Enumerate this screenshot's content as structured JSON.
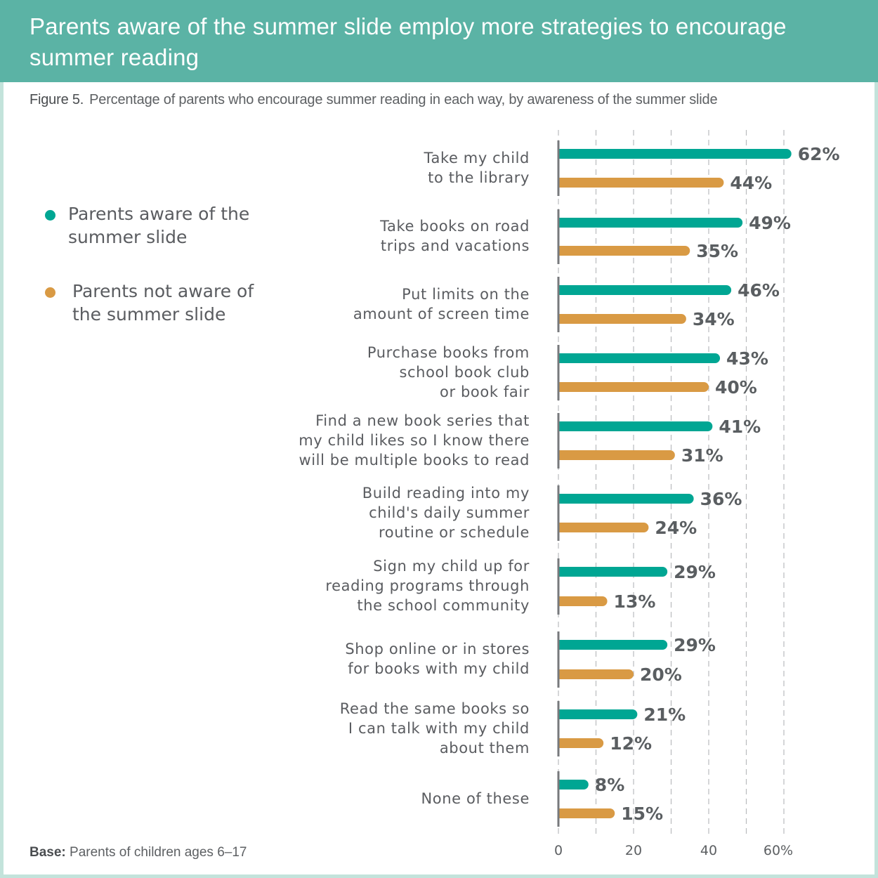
{
  "header": {
    "title": "Parents aware of the summer slide employ more strategies to encourage summer reading"
  },
  "figure": {
    "label": "Figure 5.",
    "caption": "Percentage of parents who encourage summer reading in each way, by awareness of the summer slide"
  },
  "footer": {
    "base_label": "Base:",
    "base_text": "Parents of children ages 6–17"
  },
  "colors": {
    "header_bg": "#5bb3a5",
    "aware": "#00a693",
    "not_aware": "#d99a44",
    "frame_border": "#c3e3db"
  },
  "chart_data": {
    "type": "bar",
    "orientation": "horizontal",
    "title": "Percentage of parents who encourage summer reading in each way, by awareness of the summer slide",
    "xlabel": "",
    "ylabel": "",
    "xlim": [
      0,
      62
    ],
    "grid": true,
    "legend_position": "left",
    "x_ticks": [
      0,
      20,
      40,
      60
    ],
    "x_tick_labels": [
      "0",
      "20",
      "40",
      "60%"
    ],
    "categories": [
      "Take my child\nto the library",
      "Take books on road\ntrips and vacations",
      "Put limits on the\namount of screen time",
      "Purchase books from\nschool book club\nor book fair",
      "Find a new book series that\nmy child likes so I know there\nwill be multiple books to read",
      "Build reading into my\nchild's daily summer\nroutine or schedule",
      "Sign my child up for\nreading programs through\nthe school community",
      "Shop online or in stores\nfor books with my child",
      "Read the same books so\nI can talk with my child\nabout them",
      "None of these"
    ],
    "series": [
      {
        "name": "Parents aware of the summer slide",
        "color": "#00a693",
        "values": [
          62,
          49,
          46,
          43,
          41,
          36,
          29,
          29,
          21,
          8
        ],
        "labels": [
          "62%",
          "49%",
          "46%",
          "43%",
          "41%",
          "36%",
          "29%",
          "29%",
          "21%",
          "8%"
        ]
      },
      {
        "name": "Parents not aware of the summer slide",
        "color": "#d99a44",
        "values": [
          44,
          35,
          34,
          40,
          31,
          24,
          13,
          20,
          12,
          15
        ],
        "labels": [
          "44%",
          "35%",
          "34%",
          "40%",
          "31%",
          "24%",
          "13%",
          "20%",
          "12%",
          "15%"
        ]
      }
    ]
  }
}
